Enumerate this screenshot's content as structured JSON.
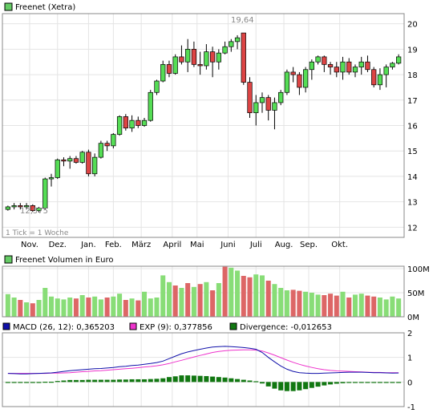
{
  "colors": {
    "up": "#55dd55",
    "down": "#dd4444",
    "vol_up": "#88dd77",
    "vol_down": "#dd6666",
    "macd": "#1111aa",
    "exp": "#ee33cc",
    "divergence": "#117711",
    "grid": "#e4e4e4",
    "frame": "#888888",
    "annotation": "#888888"
  },
  "chart_data": [
    {
      "type": "candlestick",
      "title": "Freenet (Xetra)",
      "interval_note": "1 Tick = 1 Woche",
      "annotations": {
        "high_label": "19,64",
        "low_label": "12,575"
      },
      "x_tick_labels": [
        "Nov.",
        "Dez.",
        "Jan.",
        "Feb.",
        "März",
        "April",
        "Mai",
        "Juni",
        "Juli",
        "Aug.",
        "Sep.",
        "Okt."
      ],
      "x_tick_weeks": [
        4,
        8.5,
        13.5,
        17.5,
        22,
        27,
        31,
        36,
        40.5,
        45,
        49,
        54
      ],
      "y_ticks": [
        12,
        13,
        14,
        15,
        16,
        17,
        18,
        19,
        20
      ],
      "ylim": [
        11.6,
        20.4
      ],
      "grid": true,
      "candles": [
        [
          12.7,
          12.85,
          12.65,
          12.8
        ],
        [
          12.8,
          12.95,
          12.7,
          12.85
        ],
        [
          12.85,
          12.95,
          12.7,
          12.8
        ],
        [
          12.8,
          12.95,
          12.7,
          12.85
        ],
        [
          12.85,
          12.9,
          12.6,
          12.65
        ],
        [
          12.65,
          12.8,
          12.58,
          12.75
        ],
        [
          12.75,
          13.95,
          12.7,
          13.9
        ],
        [
          13.9,
          14.1,
          13.6,
          13.95
        ],
        [
          13.95,
          14.7,
          13.9,
          14.65
        ],
        [
          14.65,
          14.75,
          14.4,
          14.6
        ],
        [
          14.6,
          14.8,
          14.3,
          14.7
        ],
        [
          14.7,
          14.8,
          14.5,
          14.55
        ],
        [
          14.55,
          15.0,
          14.5,
          14.95
        ],
        [
          14.95,
          15.05,
          14.0,
          14.1
        ],
        [
          14.1,
          14.9,
          14.0,
          14.75
        ],
        [
          14.75,
          15.4,
          14.7,
          15.3
        ],
        [
          15.3,
          15.4,
          15.0,
          15.2
        ],
        [
          15.2,
          15.7,
          15.1,
          15.65
        ],
        [
          15.65,
          16.4,
          15.6,
          16.35
        ],
        [
          16.35,
          16.45,
          15.8,
          15.9
        ],
        [
          15.9,
          16.4,
          15.75,
          16.2
        ],
        [
          16.2,
          16.35,
          15.9,
          16.0
        ],
        [
          16.0,
          16.3,
          15.95,
          16.2
        ],
        [
          16.2,
          17.4,
          16.15,
          17.3
        ],
        [
          17.3,
          17.8,
          17.2,
          17.75
        ],
        [
          17.75,
          18.55,
          17.7,
          18.4
        ],
        [
          18.4,
          18.55,
          17.9,
          18.05
        ],
        [
          18.05,
          18.8,
          18.0,
          18.7
        ],
        [
          18.7,
          19.15,
          18.4,
          18.5
        ],
        [
          18.5,
          19.4,
          18.1,
          19.0
        ],
        [
          19.0,
          19.3,
          18.3,
          18.4
        ],
        [
          18.4,
          18.9,
          18.0,
          18.35
        ],
        [
          18.35,
          19.2,
          18.2,
          18.9
        ],
        [
          18.9,
          19.1,
          17.9,
          18.5
        ],
        [
          18.5,
          19.0,
          18.2,
          18.85
        ],
        [
          18.85,
          19.3,
          18.8,
          19.1
        ],
        [
          19.1,
          19.4,
          18.9,
          19.3
        ],
        [
          19.3,
          19.55,
          19.0,
          19.45
        ],
        [
          19.64,
          19.64,
          17.6,
          17.7
        ],
        [
          17.7,
          17.9,
          16.3,
          16.5
        ],
        [
          16.5,
          17.2,
          16.0,
          16.9
        ],
        [
          16.9,
          17.3,
          16.5,
          17.1
        ],
        [
          17.1,
          17.2,
          16.2,
          16.6
        ],
        [
          16.6,
          17.1,
          15.85,
          16.9
        ],
        [
          16.9,
          17.4,
          16.8,
          17.3
        ],
        [
          17.3,
          18.2,
          17.2,
          18.1
        ],
        [
          18.1,
          18.3,
          17.7,
          18.0
        ],
        [
          18.0,
          18.1,
          17.2,
          17.5
        ],
        [
          17.5,
          18.3,
          17.3,
          18.2
        ],
        [
          18.2,
          18.6,
          17.8,
          18.5
        ],
        [
          18.5,
          18.75,
          18.4,
          18.7
        ],
        [
          18.7,
          18.75,
          18.1,
          18.4
        ],
        [
          18.4,
          18.5,
          18.0,
          18.3
        ],
        [
          18.3,
          18.5,
          17.9,
          18.1
        ],
        [
          18.1,
          18.7,
          17.8,
          18.5
        ],
        [
          18.5,
          18.65,
          18.0,
          18.1
        ],
        [
          18.1,
          18.4,
          17.9,
          18.3
        ],
        [
          18.3,
          18.7,
          18.0,
          18.5
        ],
        [
          18.5,
          18.75,
          18.1,
          18.2
        ],
        [
          18.2,
          18.3,
          17.5,
          17.6
        ],
        [
          17.6,
          18.25,
          17.4,
          18.0
        ],
        [
          18.0,
          18.4,
          17.5,
          18.3
        ],
        [
          18.3,
          18.5,
          18.2,
          18.45
        ],
        [
          18.45,
          18.8,
          18.4,
          18.7
        ]
      ]
    },
    {
      "type": "bar",
      "title": "Freenet Volumen in Euro",
      "y_ticks": [
        0,
        50,
        100
      ],
      "y_tick_labels": [
        "0M",
        "50M",
        "100M"
      ],
      "ylim": [
        0,
        105
      ],
      "unit": "M",
      "values": [
        47,
        40,
        35,
        30,
        28,
        35,
        60,
        42,
        38,
        36,
        40,
        38,
        45,
        40,
        42,
        36,
        40,
        42,
        48,
        35,
        38,
        34,
        52,
        38,
        40,
        86,
        72,
        65,
        60,
        70,
        62,
        68,
        72,
        55,
        70,
        104,
        102,
        96,
        85,
        82,
        88,
        86,
        75,
        68,
        60,
        55,
        56,
        54,
        52,
        50,
        46,
        45,
        48,
        44,
        52,
        40,
        46,
        48,
        44,
        42,
        40,
        36,
        42,
        38
      ],
      "up": [
        true,
        true,
        false,
        true,
        false,
        true,
        true,
        true,
        true,
        true,
        true,
        false,
        true,
        false,
        true,
        true,
        false,
        true,
        true,
        false,
        true,
        false,
        true,
        true,
        true,
        true,
        true,
        false,
        true,
        false,
        true,
        false,
        true,
        false,
        true,
        false,
        true,
        true,
        false,
        false,
        true,
        true,
        false,
        true,
        true,
        true,
        false,
        false,
        true,
        true,
        true,
        false,
        false,
        false,
        true,
        false,
        true,
        true,
        false,
        false,
        true,
        true,
        true,
        true
      ]
    },
    {
      "type": "line",
      "title": "MACD",
      "legend": [
        {
          "label": "MACD (26, 12): 0,365203",
          "color": "macd"
        },
        {
          "label": "EXP (9): 0,377856",
          "color": "exp"
        },
        {
          "label": "Divergence: -0,012653",
          "color": "divergence"
        }
      ],
      "y_ticks": [
        -1,
        0,
        1,
        2
      ],
      "ylim": [
        -1.0,
        2.0
      ],
      "series": [
        {
          "values": [
            0.35,
            0.34,
            0.33,
            0.33,
            0.34,
            0.35,
            0.36,
            0.37,
            0.4,
            0.43,
            0.46,
            0.48,
            0.5,
            0.52,
            0.54,
            0.55,
            0.57,
            0.59,
            0.62,
            0.64,
            0.67,
            0.69,
            0.72,
            0.75,
            0.79,
            0.85,
            0.95,
            1.05,
            1.15,
            1.22,
            1.28,
            1.33,
            1.38,
            1.42,
            1.44,
            1.45,
            1.44,
            1.42,
            1.4,
            1.37,
            1.33,
            1.2,
            1.0,
            0.82,
            0.65,
            0.52,
            0.43,
            0.38,
            0.36,
            0.35,
            0.35,
            0.36,
            0.37,
            0.38,
            0.39,
            0.4,
            0.4,
            0.4,
            0.39,
            0.38,
            0.38,
            0.37,
            0.36,
            0.365
          ]
        },
        {
          "values": [
            0.35,
            0.35,
            0.35,
            0.35,
            0.35,
            0.35,
            0.35,
            0.36,
            0.36,
            0.37,
            0.38,
            0.4,
            0.42,
            0.43,
            0.45,
            0.46,
            0.48,
            0.5,
            0.52,
            0.54,
            0.56,
            0.58,
            0.61,
            0.63,
            0.66,
            0.7,
            0.75,
            0.82,
            0.88,
            0.95,
            1.02,
            1.08,
            1.14,
            1.2,
            1.24,
            1.27,
            1.29,
            1.3,
            1.31,
            1.31,
            1.3,
            1.26,
            1.18,
            1.09,
            0.99,
            0.89,
            0.8,
            0.72,
            0.65,
            0.59,
            0.54,
            0.5,
            0.47,
            0.45,
            0.44,
            0.43,
            0.42,
            0.41,
            0.4,
            0.39,
            0.39,
            0.38,
            0.38,
            0.378
          ]
        }
      ],
      "divergence": [
        0.0,
        -0.01,
        -0.02,
        -0.02,
        -0.01,
        0.0,
        0.01,
        0.01,
        0.04,
        0.06,
        0.08,
        0.08,
        0.08,
        0.09,
        0.09,
        0.09,
        0.09,
        0.09,
        0.1,
        0.1,
        0.11,
        0.11,
        0.11,
        0.12,
        0.13,
        0.15,
        0.2,
        0.23,
        0.27,
        0.27,
        0.26,
        0.25,
        0.24,
        0.22,
        0.2,
        0.18,
        0.15,
        0.12,
        0.09,
        0.06,
        0.03,
        -0.06,
        -0.18,
        -0.27,
        -0.34,
        -0.37,
        -0.37,
        -0.34,
        -0.29,
        -0.24,
        -0.19,
        -0.14,
        -0.1,
        -0.07,
        -0.05,
        -0.03,
        -0.02,
        -0.01,
        -0.01,
        -0.01,
        -0.01,
        -0.01,
        -0.02,
        -0.013
      ]
    }
  ]
}
